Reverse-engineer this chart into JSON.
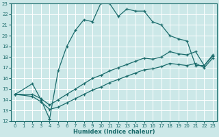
{
  "xlabel": "Humidex (Indice chaleur)",
  "bg_color": "#cce8e8",
  "line_color": "#1a6b6b",
  "grid_color": "#ffffff",
  "xlim": [
    -0.5,
    23.5
  ],
  "ylim": [
    12,
    23
  ],
  "xticks": [
    0,
    1,
    2,
    3,
    4,
    5,
    6,
    7,
    8,
    9,
    10,
    11,
    12,
    13,
    14,
    15,
    16,
    17,
    18,
    19,
    20,
    21,
    22,
    23
  ],
  "yticks": [
    12,
    13,
    14,
    15,
    16,
    17,
    18,
    19,
    20,
    21,
    22,
    23
  ],
  "curve1_x": [
    0,
    2,
    3,
    4,
    5,
    6,
    7,
    8,
    9,
    10,
    11,
    12,
    13,
    14,
    15,
    16,
    17,
    18,
    19,
    20,
    21,
    22,
    23
  ],
  "curve1_y": [
    14.5,
    15.5,
    14.0,
    12.2,
    16.7,
    19.0,
    20.5,
    21.5,
    21.3,
    23.1,
    23.0,
    21.8,
    22.5,
    22.3,
    22.3,
    21.3,
    21.0,
    20.0,
    19.7,
    19.5,
    17.2,
    17.2,
    18.1
  ],
  "curve2_x": [
    0,
    2,
    3,
    4,
    5,
    6,
    7,
    8,
    9,
    10,
    11,
    12,
    13,
    14,
    15,
    16,
    17,
    18,
    19,
    20,
    21,
    22,
    23
  ],
  "curve2_y": [
    14.5,
    14.5,
    14.1,
    13.5,
    14.0,
    14.5,
    15.0,
    15.5,
    16.0,
    16.3,
    16.7,
    17.0,
    17.3,
    17.6,
    17.9,
    17.8,
    18.0,
    18.5,
    18.3,
    18.2,
    18.5,
    17.2,
    18.2
  ],
  "curve3_x": [
    0,
    2,
    3,
    4,
    5,
    6,
    7,
    8,
    9,
    10,
    11,
    12,
    13,
    14,
    15,
    16,
    17,
    18,
    19,
    20,
    21,
    22,
    23
  ],
  "curve3_y": [
    14.5,
    14.3,
    13.8,
    13.1,
    13.3,
    13.7,
    14.1,
    14.5,
    14.9,
    15.2,
    15.6,
    15.9,
    16.2,
    16.5,
    16.8,
    16.9,
    17.1,
    17.4,
    17.3,
    17.2,
    17.4,
    17.0,
    17.9
  ]
}
